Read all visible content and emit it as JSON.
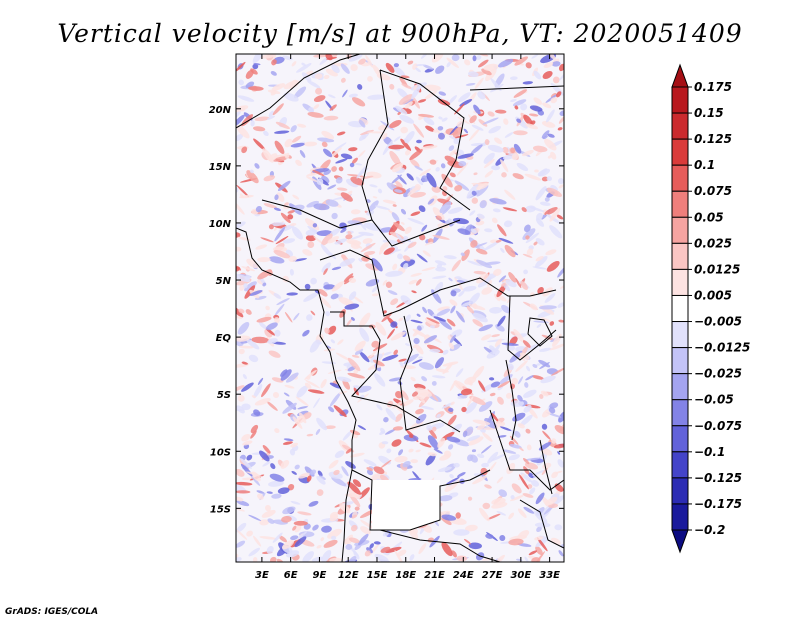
{
  "chart_data": {
    "type": "heatmap",
    "title": "Vertical velocity [m/s] at 900hPa, VT: 2020051409",
    "variable": "Vertical velocity",
    "units": "m/s",
    "level": "900hPa",
    "valid_time": "2020051409",
    "x_ticks": [
      "3E",
      "6E",
      "9E",
      "12E",
      "15E",
      "18E",
      "21E",
      "24E",
      "27E",
      "30E",
      "33E"
    ],
    "x_tick_values": [
      3,
      6,
      9,
      12,
      15,
      18,
      21,
      24,
      27,
      30,
      33
    ],
    "y_ticks": [
      "20N",
      "15N",
      "10N",
      "5N",
      "EQ",
      "5S",
      "10S",
      "15S"
    ],
    "y_tick_values": [
      20,
      15,
      10,
      5,
      0,
      -5,
      -10,
      -15
    ],
    "xlim": [
      0.3,
      34.5
    ],
    "ylim": [
      -19.7,
      24.8
    ],
    "colorbar": {
      "levels": [
        "0.175",
        "0.15",
        "0.125",
        "0.1",
        "0.075",
        "0.05",
        "0.025",
        "0.0125",
        "0.005",
        "−0.005",
        "−0.0125",
        "−0.025",
        "−0.05",
        "−0.075",
        "−0.1",
        "−0.125",
        "−0.175",
        "−0.2"
      ],
      "colors": [
        "#a50f15",
        "#b8181e",
        "#cb2a2e",
        "#da3b3a",
        "#e65c5a",
        "#ef7f7c",
        "#f6a4a1",
        "#fac6c4",
        "#fde3e2",
        "#ffffff",
        "#e1e1fb",
        "#c3c3f7",
        "#a4a4f0",
        "#8383e6",
        "#6262d9",
        "#4444c9",
        "#2c2cb4",
        "#1a1a9c",
        "#0c0c82"
      ]
    },
    "credit": "GrADS: IGES/COLA"
  }
}
